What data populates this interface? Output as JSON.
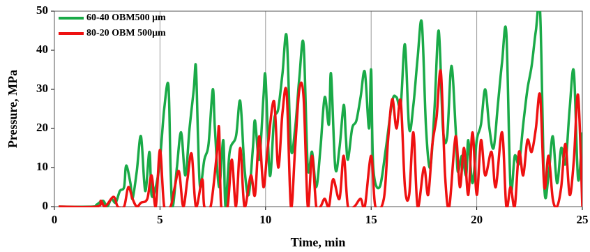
{
  "chart_data": {
    "type": "line",
    "xlabel": "Time, min",
    "ylabel": "Pressure, MPa",
    "xlim": [
      0,
      25
    ],
    "xticks": [
      0,
      5,
      10,
      15,
      20,
      25
    ],
    "ylim": [
      0,
      50
    ],
    "yticks": [
      0,
      10,
      20,
      30,
      40,
      50
    ],
    "grid": "x",
    "legend": "upper left",
    "series": [
      {
        "name": "60-40 OBM500 μm",
        "color": "#1aaa48",
        "x": [
          0.2,
          1.8,
          2,
          2.3,
          2.5,
          2.7,
          2.9,
          3.1,
          3.3,
          3.4,
          3.6,
          3.7,
          3.9,
          4.1,
          4.3,
          4.5,
          4.6,
          4.8,
          5,
          5.2,
          5.4,
          5.5,
          5.6,
          5.8,
          6,
          6.2,
          6.4,
          6.6,
          6.7,
          6.8,
          6.9,
          7.1,
          7.3,
          7.5,
          7.6,
          7.8,
          8,
          8.1,
          8.3,
          8.6,
          8.8,
          9,
          9.2,
          9.4,
          9.5,
          9.7,
          9.9,
          10,
          10.2,
          10.4,
          10.6,
          10.8,
          11,
          11.2,
          11.4,
          11.6,
          11.8,
          12,
          12.2,
          12.4,
          12.6,
          12.8,
          13,
          13.1,
          13.3,
          13.5,
          13.7,
          13.8,
          13.9,
          14.1,
          14.3,
          14.5,
          14.7,
          14.9,
          15,
          15.1,
          15.4,
          15.7,
          16,
          16.2,
          16.4,
          16.6,
          16.8,
          17,
          17.2,
          17.4,
          17.6,
          17.8,
          18,
          18.2,
          18.4,
          18.6,
          18.8,
          19,
          19.1,
          19.3,
          19.5,
          19.6,
          19.8,
          20,
          20.2,
          20.4,
          20.6,
          20.8,
          21,
          21.2,
          21.4,
          21.6,
          21.8,
          22,
          22.2,
          22.4,
          22.6,
          22.8,
          23,
          23.2,
          23.4,
          23.6,
          23.8,
          24,
          24.2,
          24.4,
          24.6,
          24.8,
          25
        ],
        "values": [
          0,
          0,
          0.5,
          1.5,
          0,
          2,
          1,
          4,
          5,
          10.5,
          6,
          2,
          9,
          18,
          4,
          14,
          3,
          5,
          12,
          25,
          31,
          10,
          0,
          10,
          19,
          8,
          20,
          30,
          36,
          18,
          5,
          12,
          16,
          30,
          20,
          5,
          17,
          0,
          14,
          18,
          27,
          10,
          3,
          15,
          22,
          12,
          28,
          33,
          8,
          22,
          25,
          34,
          43.5,
          15,
          20,
          33,
          41.5,
          10,
          14,
          5,
          15,
          28,
          21,
          34,
          10,
          15,
          26,
          18,
          12,
          20,
          22,
          28,
          34.5,
          20,
          35,
          10,
          5,
          15,
          27,
          28,
          26,
          41.5,
          20,
          26,
          38,
          47,
          20,
          10,
          25,
          45,
          20,
          18,
          36,
          20,
          9,
          13,
          8,
          17,
          6,
          17,
          21,
          30,
          20,
          15,
          26,
          37,
          44.5,
          5,
          13,
          11,
          21,
          30,
          36,
          45,
          50,
          5,
          8,
          18,
          6,
          15,
          11,
          25,
          34.5,
          7,
          19
        ]
      },
      {
        "name": "80-20 OBM 500μm",
        "color": "#ee1111",
        "x": [
          0.2,
          2,
          2.2,
          2.4,
          2.8,
          3,
          3.3,
          3.5,
          3.7,
          3.9,
          4.1,
          4.4,
          4.6,
          4.8,
          5,
          5.2,
          5.5,
          5.7,
          5.9,
          6.1,
          6.3,
          6.5,
          6.7,
          7,
          7.1,
          7.4,
          7.7,
          7.8,
          7.9,
          8.2,
          8.4,
          8.6,
          8.8,
          9,
          9.3,
          9.5,
          9.7,
          9.9,
          10.1,
          10.4,
          10.6,
          10.8,
          11,
          11.2,
          11.4,
          11.6,
          11.8,
          12,
          12.2,
          12.4,
          12.6,
          12.8,
          13,
          13.2,
          13.5,
          13.7,
          13.9,
          14.2,
          14.5,
          14.7,
          15,
          15.2,
          15.6,
          15.8,
          16,
          16.2,
          16.4,
          16.6,
          16.8,
          17,
          17.2,
          17.5,
          17.7,
          17.9,
          18.1,
          18.3,
          18.5,
          18.7,
          19,
          19.2,
          19.4,
          19.6,
          19.8,
          20,
          20.2,
          20.4,
          20.7,
          20.9,
          21.2,
          21.4,
          21.6,
          21.8,
          22,
          22.2,
          22.4,
          22.6,
          22.8,
          23,
          23.2,
          23.4,
          23.6,
          23.8,
          24,
          24.2,
          24.4,
          24.6,
          24.8,
          25
        ],
        "values": [
          0,
          0,
          1.5,
          0,
          2.5,
          0,
          0,
          5,
          2,
          0,
          1,
          2,
          8,
          0,
          14.5,
          0,
          0,
          5,
          9,
          0,
          7,
          13.5,
          0,
          7,
          0,
          0,
          14,
          20,
          0,
          0,
          12,
          0,
          15,
          0,
          8,
          3,
          18,
          5,
          15,
          27,
          10,
          24,
          29,
          0,
          15,
          30,
          28,
          0,
          13,
          0,
          0,
          2,
          0,
          7,
          2,
          13,
          0,
          0,
          2,
          0,
          13,
          0,
          2,
          17,
          27.5,
          20,
          27,
          5,
          3,
          19,
          0,
          10,
          3,
          16,
          23,
          34.5,
          8,
          0,
          18,
          5,
          15,
          3,
          19,
          3,
          17,
          8,
          14,
          5,
          19,
          0,
          5,
          0,
          14,
          8,
          17,
          14,
          20,
          28.5,
          5,
          13,
          2,
          0,
          5,
          16,
          3,
          12,
          28.5,
          0
        ]
      }
    ]
  }
}
